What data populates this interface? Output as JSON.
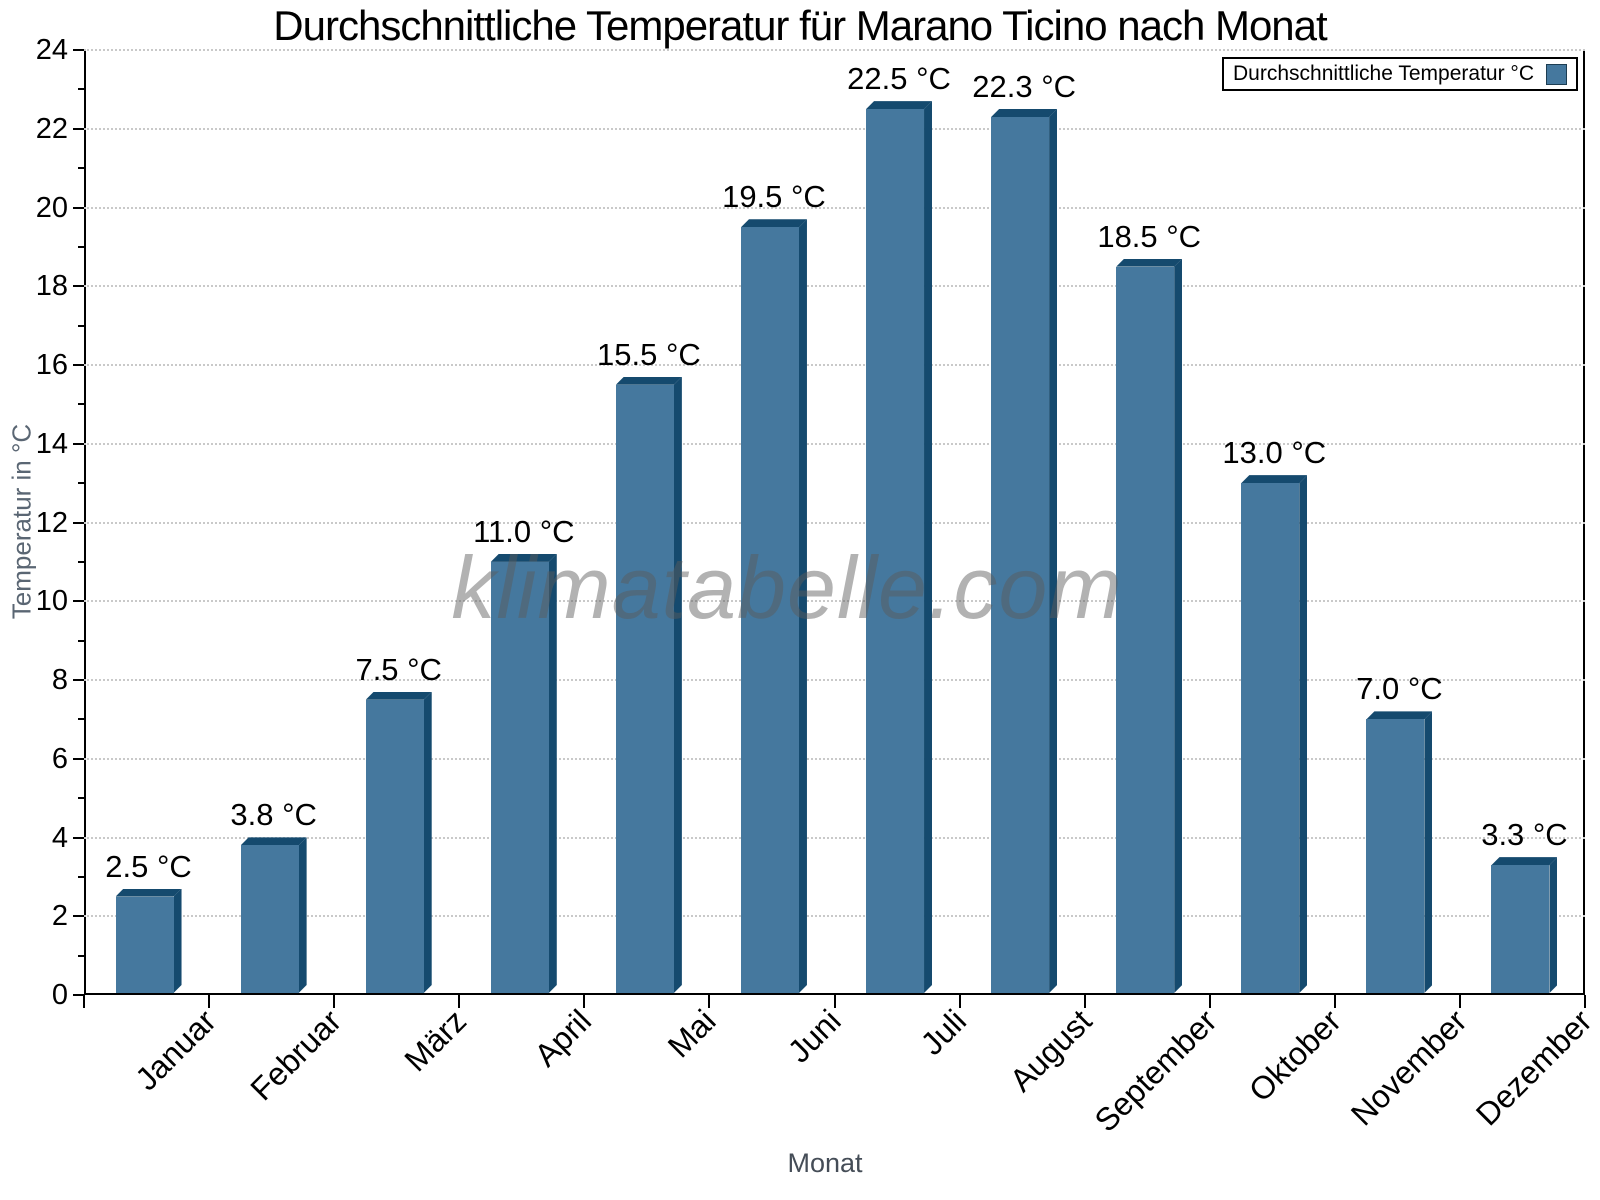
{
  "title": "Durchschnittliche Temperatur für Marano Ticino nach Monat",
  "watermark": "klimatabelle.com",
  "legend": {
    "label": "Durchschnittliche Temperatur °C"
  },
  "axes": {
    "x_title": "Monat",
    "y_title": "Temperatur in °C"
  },
  "colors": {
    "bar_face": "#45789E",
    "bar_side": "#154A6E",
    "bar_top": "#154A6E",
    "gridline": "#c9c9c9",
    "axis": "#000000",
    "axis_title_gray": "#5a6673",
    "watermark_gray": "#b3b3b3"
  },
  "chart_data": {
    "type": "bar",
    "title": "Durchschnittliche Temperatur für Marano Ticino nach Monat",
    "xlabel": "Monat",
    "ylabel": "Temperatur in °C",
    "legend": "Durchschnittliche Temperatur °C",
    "legend_position": "top-right",
    "grid": "horizontal dotted",
    "categories": [
      "Januar",
      "Februar",
      "März",
      "April",
      "Mai",
      "Juni",
      "Juli",
      "August",
      "September",
      "Oktober",
      "November",
      "Dezember"
    ],
    "values": [
      2.5,
      3.8,
      7.5,
      11.0,
      15.5,
      19.5,
      22.5,
      22.3,
      18.5,
      13.0,
      7.0,
      3.3
    ],
    "value_labels": [
      "2.5 °C",
      "3.8 °C",
      "7.5 °C",
      "11.0 °C",
      "15.5 °C",
      "19.5 °C",
      "22.5 °C",
      "22.3 °C",
      "18.5 °C",
      "13.0 °C",
      "7.0 °C",
      "3.3 °C"
    ],
    "ylim": [
      0,
      24
    ],
    "ytick_step": 2,
    "yticks": [
      0,
      2,
      4,
      6,
      8,
      10,
      12,
      14,
      16,
      18,
      20,
      22,
      24
    ],
    "bar_style": "pseudo-3d"
  }
}
